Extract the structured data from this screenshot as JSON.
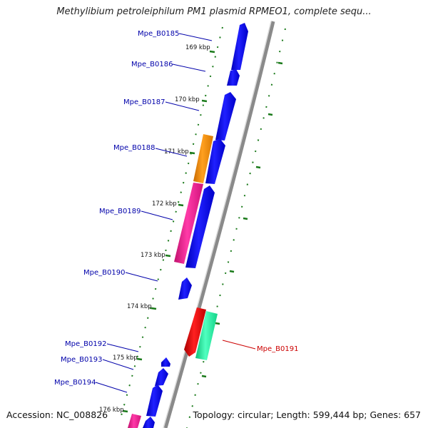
{
  "title": "Methylibium petroleiphilum PM1 plasmid RPMEO1, complete sequ...",
  "footer": {
    "accession": "Accession: NC_008826",
    "summary": "Topology: circular; Length: 599,444 bp; Genes: 657"
  },
  "colors": {
    "backbone": "#8a8a8a",
    "tick": "#1a7a1a",
    "gene_label": "#0000aa",
    "highlight_label": "#cc0000",
    "gene_default": "#0000ee",
    "gene_orange": "#f08a00",
    "gene_pink": "#f01890",
    "gene_red": "#e00000",
    "gene_green": "#1cf29a"
  },
  "ruler": {
    "unit": "kbp",
    "tick_labels": [
      "169 kbp",
      "170 kbp",
      "171 kbp",
      "172 kbp",
      "173 kbp",
      "174 kbp",
      "175 kbp",
      "176 kbp"
    ]
  },
  "genes": [
    {
      "id": "Mpe_B0185",
      "strand": "+",
      "color": "gene_default"
    },
    {
      "id": "Mpe_B0186",
      "strand": "+",
      "color": "gene_default"
    },
    {
      "id": "Mpe_B0187",
      "strand": "+",
      "color": "gene_default"
    },
    {
      "id": "Mpe_B0188",
      "strand": "+",
      "color": "gene_orange"
    },
    {
      "id": "Mpe_B0189",
      "strand": "+",
      "color": "gene_pink"
    },
    {
      "id": "Mpe_B0190",
      "strand": "+",
      "color": "gene_default"
    },
    {
      "id": "Mpe_B0191",
      "strand": "-",
      "color": "gene_red"
    },
    {
      "id": "Mpe_B0192",
      "strand": "+",
      "color": "gene_default"
    },
    {
      "id": "Mpe_B0193",
      "strand": "+",
      "color": "gene_default"
    },
    {
      "id": "Mpe_B0194",
      "strand": "+",
      "color": "gene_default"
    }
  ]
}
